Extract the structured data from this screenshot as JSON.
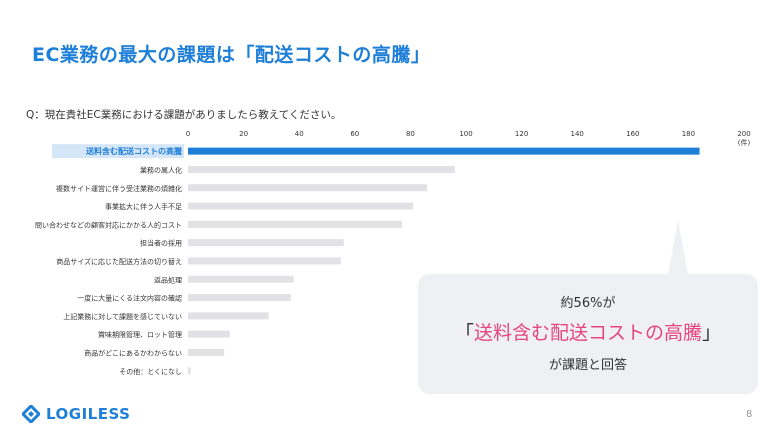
{
  "slide": {
    "title": "EC業務の最大の課題は「配送コストの高騰」",
    "question": "Q：現在貴社EC業務における課題がありましたら教えてください。",
    "page_number": "8"
  },
  "callout": {
    "line1": "約56%が",
    "line2_open": "「",
    "line2_highlight": "送料含む配送コストの高騰",
    "line2_close": "」",
    "line3": "が課題と回答"
  },
  "logo": {
    "text": "LOGILESS",
    "icon": "logiless-diamond-icon"
  },
  "colors": {
    "primary": "#1e7fd8",
    "bar_gray": "#e1e1e6",
    "highlight_bg": "#d4e6f8",
    "accent_pink": "#e8457f"
  },
  "chart_data": {
    "type": "bar",
    "orientation": "horizontal",
    "unit_label": "(件)",
    "xlim": [
      0,
      200
    ],
    "ticks": [
      0,
      20,
      40,
      60,
      80,
      100,
      120,
      140,
      160,
      180,
      200
    ],
    "categories": [
      "送料含む配送コストの高騰",
      "業務の属人化",
      "複数サイト運営に伴う受注業務の煩雑化",
      "事業拡大に伴う人手不足",
      "問い合わせなどの顧客対応にかかる人的コスト",
      "担当者の採用",
      "商品サイズに応じた配送方法の切り替え",
      "返品処理",
      "一度に大量にくる注文内容の確認",
      "上記業務に対して課題を感じていない",
      "賞味期限管理、ロット管理",
      "商品がどこにあるかわからない",
      "その他：とくになし"
    ],
    "values": [
      184,
      96,
      86,
      81,
      77,
      56,
      55,
      38,
      37,
      29,
      15,
      13,
      1
    ],
    "highlight_index": 0
  }
}
